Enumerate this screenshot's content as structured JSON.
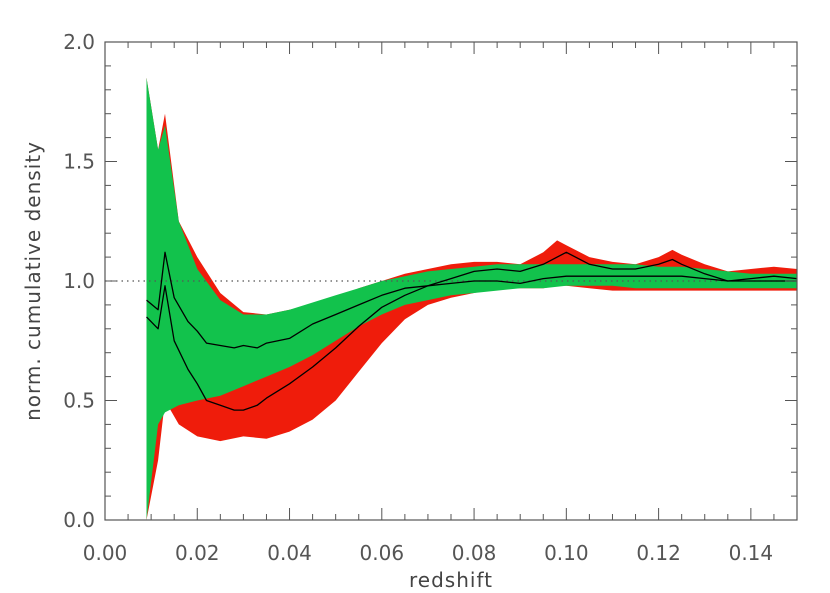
{
  "chart_data": {
    "type": "area",
    "title": "",
    "xlabel": "redshift",
    "ylabel": "norm. cumulative density",
    "xlim": [
      0.0,
      0.15
    ],
    "ylim": [
      0.0,
      2.0
    ],
    "x_ticks": [
      "0.00",
      "0.02",
      "0.04",
      "0.06",
      "0.08",
      "0.10",
      "0.12",
      "0.14"
    ],
    "y_ticks": [
      "0.0",
      "0.5",
      "1.0",
      "1.5",
      "2.0"
    ],
    "reference_line": {
      "y": 1.0,
      "style": "dotted",
      "color": "#555555"
    },
    "grid": false,
    "legend": "none",
    "series": [
      {
        "kind": "band",
        "color": "#ef1c0b",
        "x": [
          0.009,
          0.0115,
          0.013,
          0.016,
          0.02,
          0.025,
          0.03,
          0.035,
          0.04,
          0.045,
          0.05,
          0.055,
          0.06,
          0.065,
          0.07,
          0.075,
          0.08,
          0.085,
          0.09,
          0.095,
          0.098,
          0.1,
          0.105,
          0.11,
          0.115,
          0.12,
          0.123,
          0.125,
          0.13,
          0.135,
          0.14,
          0.145,
          0.15
        ],
        "upper": [
          1.85,
          1.55,
          1.7,
          1.25,
          1.1,
          0.95,
          0.87,
          0.86,
          0.88,
          0.9,
          0.93,
          0.97,
          1.0,
          1.03,
          1.05,
          1.07,
          1.08,
          1.08,
          1.07,
          1.12,
          1.17,
          1.15,
          1.1,
          1.08,
          1.07,
          1.1,
          1.13,
          1.11,
          1.07,
          1.04,
          1.05,
          1.06,
          1.05
        ],
        "lower": [
          0.0,
          0.25,
          0.5,
          0.4,
          0.35,
          0.33,
          0.35,
          0.34,
          0.37,
          0.42,
          0.5,
          0.62,
          0.74,
          0.84,
          0.9,
          0.93,
          0.95,
          0.97,
          0.97,
          0.97,
          0.98,
          0.98,
          0.97,
          0.96,
          0.96,
          0.96,
          0.96,
          0.96,
          0.96,
          0.96,
          0.96,
          0.96,
          0.96
        ]
      },
      {
        "kind": "band",
        "color": "#12c24c",
        "x": [
          0.009,
          0.0115,
          0.013,
          0.016,
          0.02,
          0.025,
          0.03,
          0.035,
          0.04,
          0.045,
          0.05,
          0.055,
          0.06,
          0.065,
          0.07,
          0.075,
          0.08,
          0.085,
          0.09,
          0.095,
          0.1,
          0.105,
          0.11,
          0.115,
          0.12,
          0.125,
          0.13,
          0.135,
          0.14,
          0.145,
          0.15
        ],
        "upper": [
          1.85,
          1.55,
          1.65,
          1.25,
          1.05,
          0.92,
          0.86,
          0.86,
          0.88,
          0.91,
          0.94,
          0.97,
          1.0,
          1.02,
          1.04,
          1.05,
          1.06,
          1.07,
          1.07,
          1.07,
          1.07,
          1.07,
          1.07,
          1.07,
          1.06,
          1.06,
          1.05,
          1.04,
          1.03,
          1.03,
          1.03
        ],
        "lower": [
          0.0,
          0.4,
          0.45,
          0.48,
          0.5,
          0.52,
          0.56,
          0.6,
          0.64,
          0.69,
          0.75,
          0.81,
          0.86,
          0.9,
          0.92,
          0.94,
          0.95,
          0.96,
          0.97,
          0.97,
          0.98,
          0.98,
          0.98,
          0.97,
          0.97,
          0.97,
          0.97,
          0.97,
          0.97,
          0.97,
          0.97
        ]
      },
      {
        "kind": "line",
        "color": "#000000",
        "x": [
          0.009,
          0.0115,
          0.013,
          0.015,
          0.018,
          0.02,
          0.022,
          0.025,
          0.028,
          0.03,
          0.033,
          0.035,
          0.04,
          0.045,
          0.05,
          0.055,
          0.06,
          0.065,
          0.07,
          0.075,
          0.08,
          0.085,
          0.09,
          0.095,
          0.1,
          0.105,
          0.11,
          0.115,
          0.12,
          0.125,
          0.13,
          0.135,
          0.14,
          0.145,
          0.15
        ],
        "values": [
          0.92,
          0.88,
          1.12,
          0.93,
          0.83,
          0.79,
          0.74,
          0.73,
          0.72,
          0.73,
          0.72,
          0.74,
          0.76,
          0.82,
          0.86,
          0.9,
          0.94,
          0.97,
          0.98,
          0.99,
          1.0,
          1.0,
          0.99,
          1.01,
          1.02,
          1.02,
          1.02,
          1.02,
          1.02,
          1.02,
          1.01,
          1.0,
          1.0,
          1.0,
          1.0
        ]
      },
      {
        "kind": "line",
        "color": "#000000",
        "x": [
          0.009,
          0.0115,
          0.013,
          0.015,
          0.018,
          0.02,
          0.022,
          0.025,
          0.028,
          0.03,
          0.033,
          0.035,
          0.04,
          0.045,
          0.05,
          0.055,
          0.06,
          0.065,
          0.07,
          0.075,
          0.08,
          0.085,
          0.09,
          0.095,
          0.1,
          0.105,
          0.11,
          0.115,
          0.12,
          0.123,
          0.125,
          0.13,
          0.135,
          0.14,
          0.145,
          0.15
        ],
        "values": [
          0.85,
          0.8,
          0.98,
          0.75,
          0.63,
          0.57,
          0.5,
          0.48,
          0.46,
          0.46,
          0.48,
          0.51,
          0.57,
          0.64,
          0.72,
          0.81,
          0.89,
          0.94,
          0.98,
          1.01,
          1.04,
          1.05,
          1.04,
          1.07,
          1.12,
          1.07,
          1.05,
          1.05,
          1.07,
          1.09,
          1.07,
          1.03,
          1.0,
          1.01,
          1.02,
          1.01
        ]
      }
    ]
  }
}
